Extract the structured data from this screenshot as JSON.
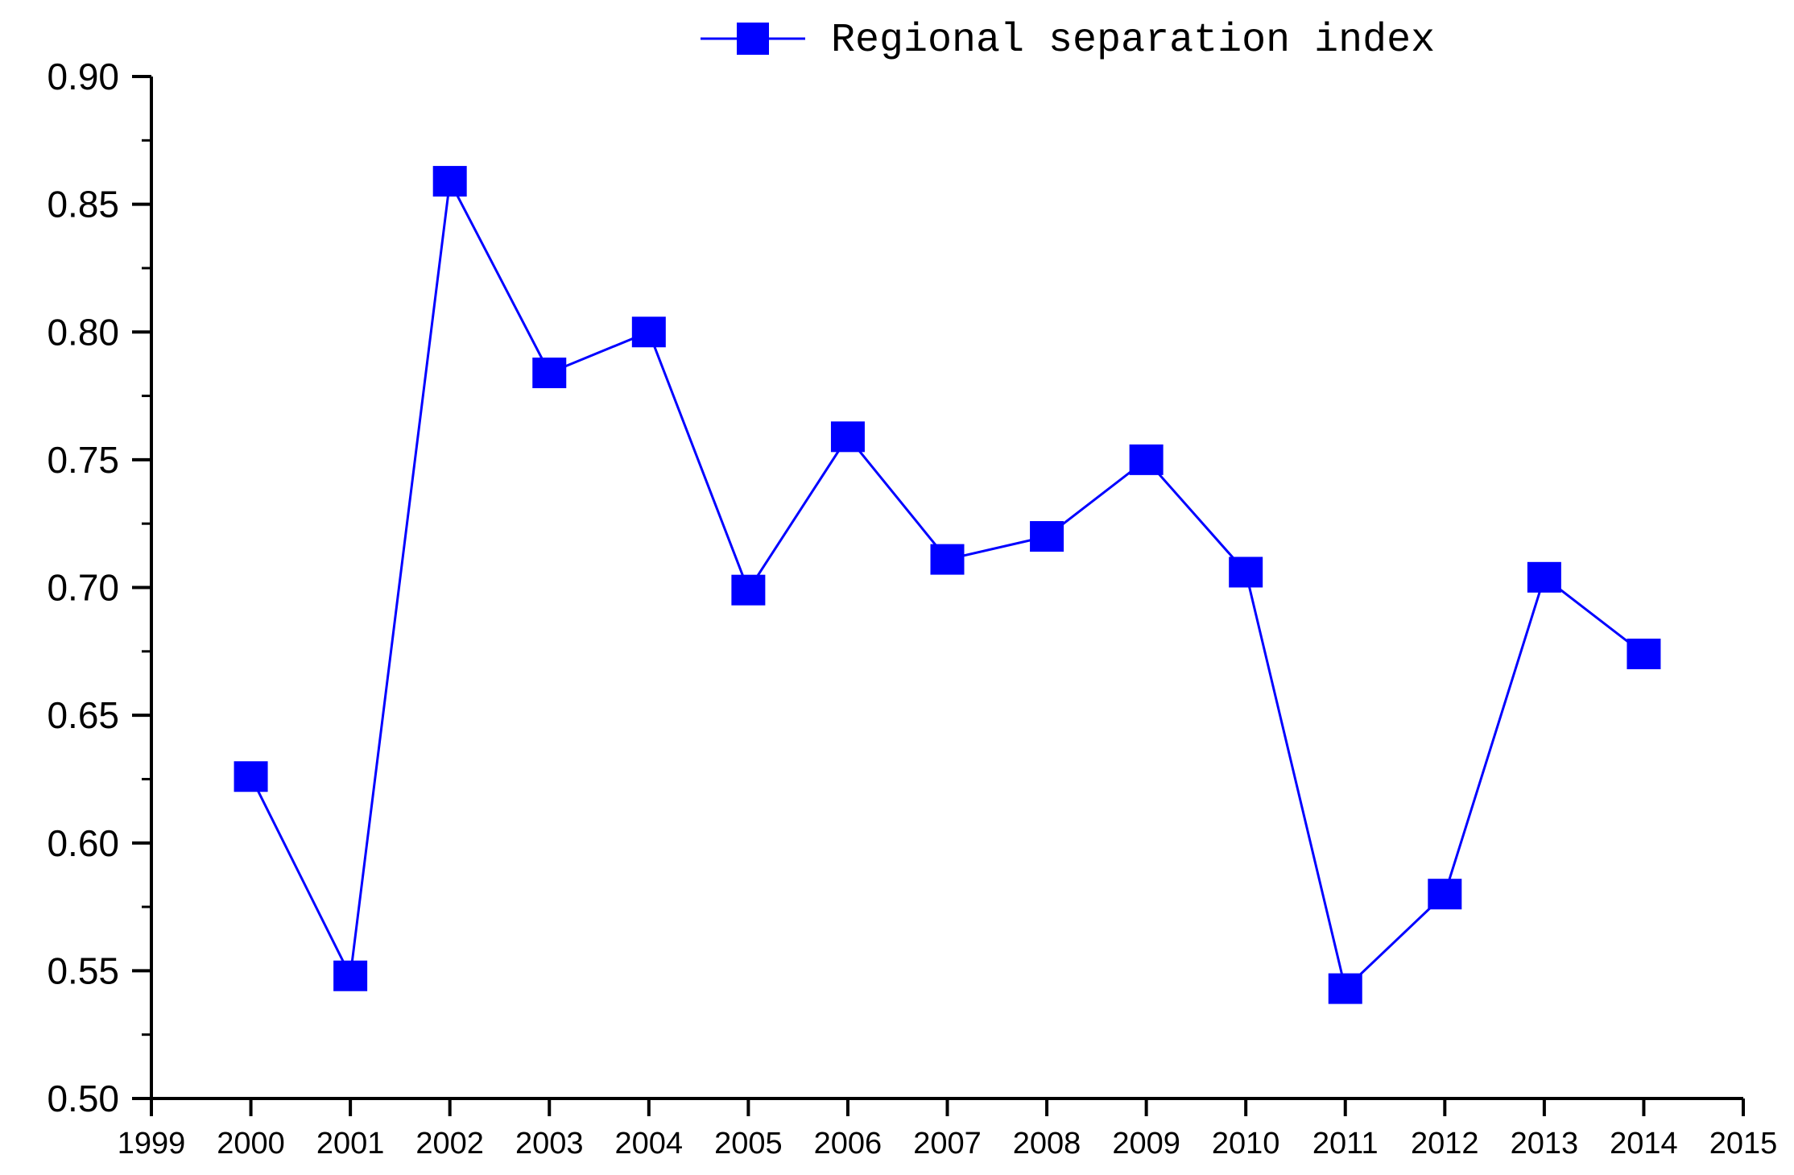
{
  "chart_data": {
    "type": "line",
    "title": "",
    "xlabel": "",
    "ylabel": "",
    "xlim": [
      1999,
      2015
    ],
    "ylim": [
      0.5,
      0.9
    ],
    "x_ticks": [
      "1999",
      "2000",
      "2001",
      "2002",
      "2003",
      "2004",
      "2005",
      "2006",
      "2007",
      "2008",
      "2009",
      "2010",
      "2011",
      "2012",
      "2013",
      "2014",
      "2015"
    ],
    "y_ticks": [
      "0.50",
      "0.55",
      "0.60",
      "0.65",
      "0.70",
      "0.75",
      "0.80",
      "0.85",
      "0.90"
    ],
    "grid": false,
    "legend_position": "top-center",
    "series": [
      {
        "name": "Regional separation index",
        "color": "#0000ff",
        "marker": "square",
        "x": [
          2000,
          2001,
          2002,
          2003,
          2004,
          2005,
          2006,
          2007,
          2008,
          2009,
          2010,
          2011,
          2012,
          2013,
          2014
        ],
        "values": [
          0.626,
          0.548,
          0.859,
          0.784,
          0.8,
          0.699,
          0.759,
          0.711,
          0.72,
          0.75,
          0.706,
          0.543,
          0.58,
          0.704,
          0.674
        ]
      }
    ]
  }
}
